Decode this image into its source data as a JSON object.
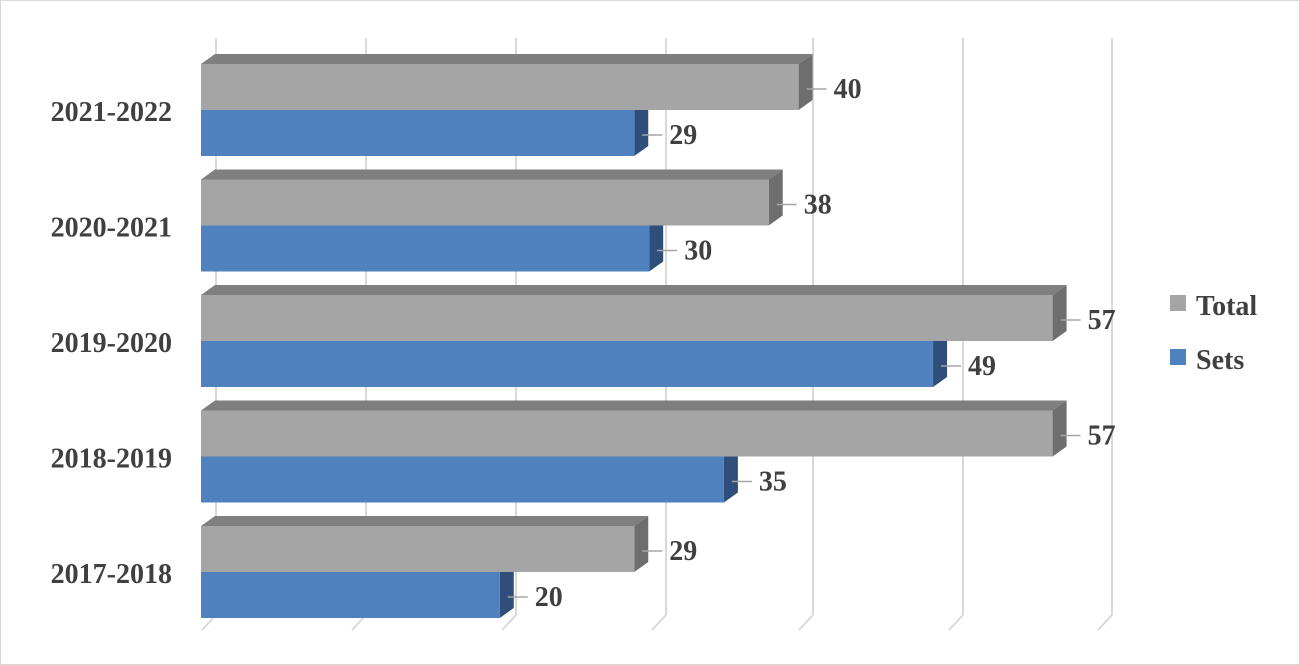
{
  "chart_data": {
    "type": "bar",
    "orientation": "horizontal",
    "style": "3d",
    "title": "",
    "xlabel": "",
    "ylabel": "",
    "categories": [
      "2021-2022",
      "2020-2021",
      "2019-2020",
      "2018-2019",
      "2017-2018"
    ],
    "series": [
      {
        "name": "Total",
        "values": [
          40,
          38,
          57,
          57,
          29
        ],
        "color": "#a5a5a5",
        "side_color": "#6e6e6e",
        "top_color": "#7f7f7f"
      },
      {
        "name": "Sets",
        "values": [
          29,
          30,
          49,
          35,
          20
        ],
        "color": "#4e81bd",
        "side_color": "#2f4f7a",
        "top_color": "#3d6aa0"
      }
    ],
    "xlim": [
      0,
      60
    ],
    "grid": true,
    "gridline_color": "#d9d9d9",
    "data_labels": true,
    "legend_position": "right"
  }
}
